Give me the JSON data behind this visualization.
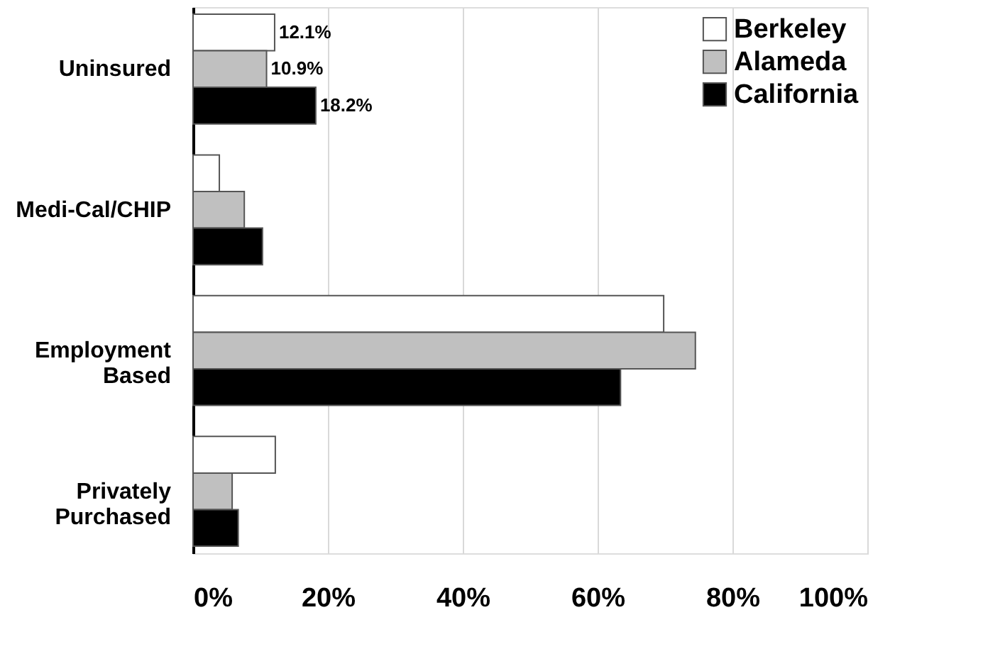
{
  "chart_data": {
    "type": "bar",
    "orientation": "horizontal",
    "categories": [
      "Uninsured",
      "Medi-Cal/CHIP",
      "Employment Based",
      "Privately Purchased"
    ],
    "series": [
      {
        "name": "Berkeley",
        "color": "#ffffff",
        "values": [
          12.1,
          3.9,
          69.8,
          12.2
        ],
        "value_labels": [
          "12.1%",
          null,
          null,
          null
        ]
      },
      {
        "name": "Alameda",
        "color": "#c0c0c0",
        "values": [
          10.9,
          7.6,
          74.5,
          5.8
        ],
        "value_labels": [
          "10.9%",
          null,
          null,
          null
        ]
      },
      {
        "name": "California",
        "color": "#000000",
        "values": [
          18.2,
          10.3,
          63.4,
          6.7
        ],
        "value_labels": [
          "18.2%",
          null,
          null,
          null
        ]
      }
    ],
    "xlim": [
      0,
      100
    ],
    "xticks": [
      {
        "value": 0,
        "label": "0%"
      },
      {
        "value": 20,
        "label": "20%"
      },
      {
        "value": 40,
        "label": "40%"
      },
      {
        "value": 60,
        "label": "60%"
      },
      {
        "value": 80,
        "label": "80%"
      },
      {
        "value": 100,
        "label": "100%"
      }
    ],
    "grid": "x",
    "legend": "top right"
  }
}
